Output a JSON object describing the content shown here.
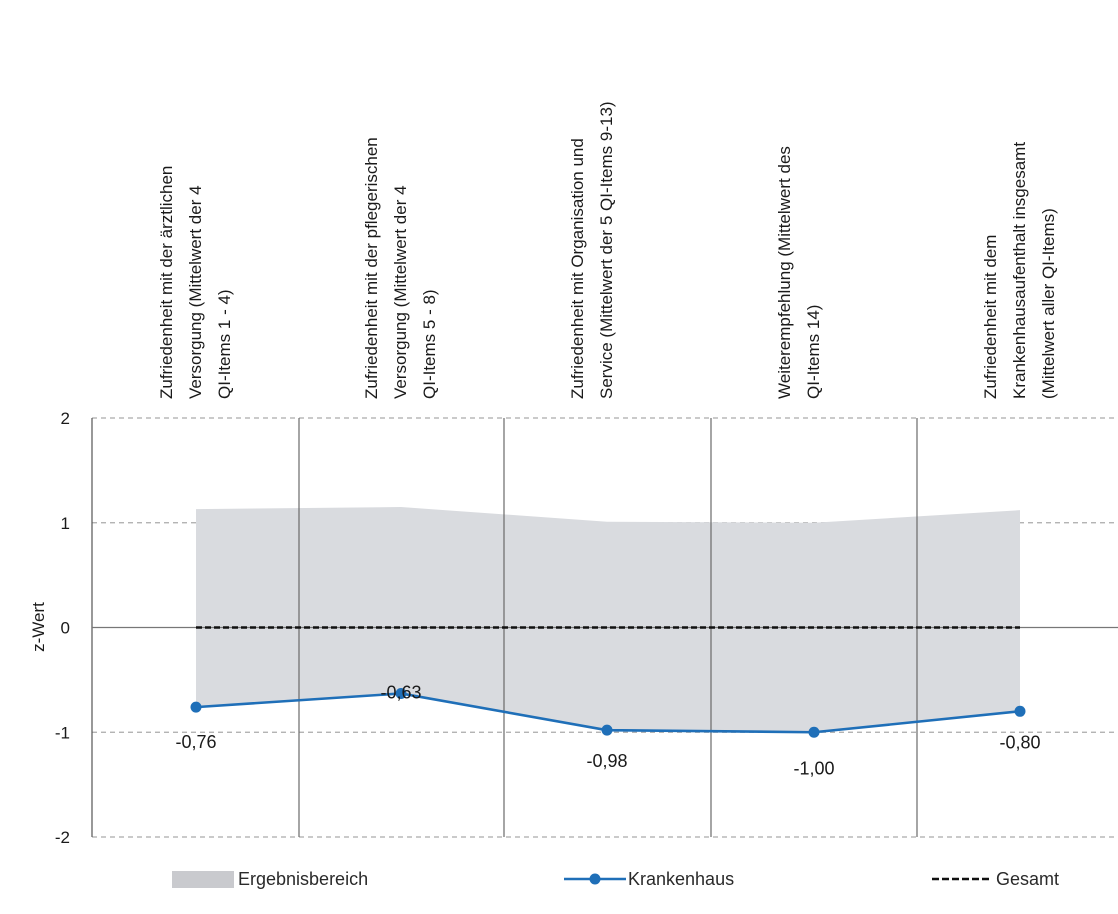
{
  "chart_data": {
    "type": "line",
    "categories": [
      [
        "Zufriedenheit mit der ärztlichen",
        "Versorgung (Mittelwert der 4",
        "QI-Items 1 - 4)"
      ],
      [
        "Zufriedenheit mit der pflegerischen",
        "Versorgung (Mittelwert der 4",
        "QI-Items 5 - 8)"
      ],
      [
        "Zufriedenheit mit Organisation und",
        "Service (Mittelwert der 5 QI-Items 9-13)"
      ],
      [
        "Weiterempfehlung (Mittelwert des",
        "QI-Items 14)"
      ],
      [
        "Zufriedenheit mit dem",
        "Krankenhausaufenthalt insgesamt",
        "(Mittelwert aller QI-Items)"
      ]
    ],
    "ylabel": "z-Wert",
    "ylim": [
      -2,
      2
    ],
    "yticks": [
      2,
      1,
      0,
      -1,
      -2
    ],
    "grid": true,
    "series": [
      {
        "name": "Ergebnisbereich",
        "kind": "band",
        "upper": [
          1.13,
          1.15,
          1.01,
          1.0,
          1.12
        ],
        "lower": [
          -0.76,
          -0.63,
          -0.98,
          -1.0,
          -0.8
        ],
        "color": "#d9dbdf"
      },
      {
        "name": "Krankenhaus",
        "kind": "line",
        "values": [
          -0.76,
          -0.63,
          -0.98,
          -1.0,
          -0.8
        ],
        "labels": [
          "-0,76",
          "-0,63",
          "-0,98",
          "-1,00",
          "-0,80"
        ],
        "color": "#1f6fb8"
      },
      {
        "name": "Gesamt",
        "kind": "dashed",
        "values": [
          0,
          0,
          0,
          0,
          0
        ],
        "color": "#111111"
      }
    ],
    "legend_placement": "bottom"
  }
}
